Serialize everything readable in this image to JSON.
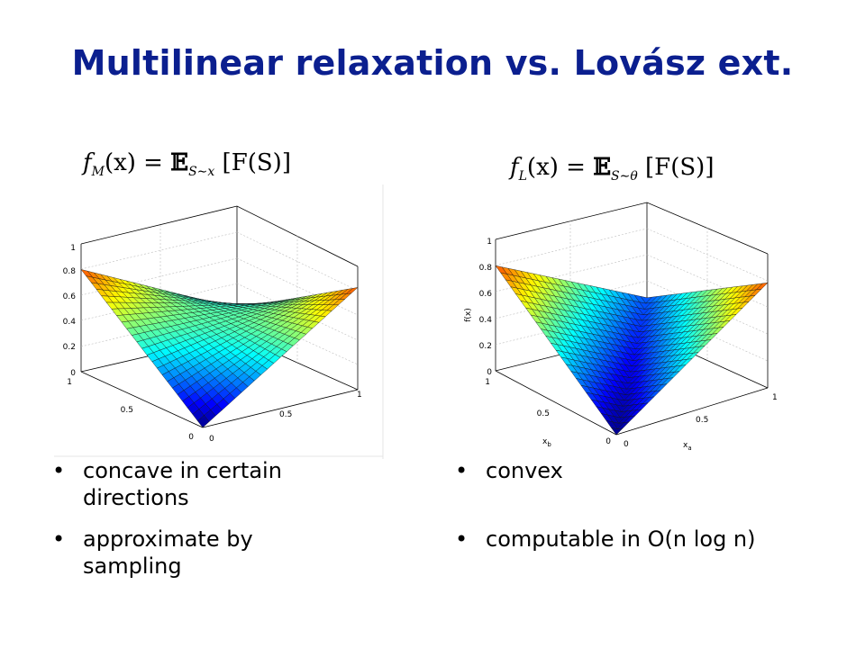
{
  "title": "Multilinear relaxation vs. Lovász ext.",
  "left": {
    "formula": {
      "f": "f",
      "sub": "M",
      "args": "(x) = ",
      "E": "𝔼",
      "esub": "S∼x",
      "rest": " [F(S)]"
    },
    "plot": {
      "z_ticks": [
        "0",
        "0.2",
        "0.4",
        "0.6",
        "0.8",
        "1"
      ],
      "xb_ticks": [
        "1",
        "0.5",
        "0"
      ],
      "xa_ticks": [
        "0",
        "0.5",
        "1"
      ]
    },
    "bullets": [
      "concave in certain directions",
      "approximate by sampling"
    ],
    "bullet_glyph": "•"
  },
  "right": {
    "formula": {
      "f": "f",
      "sub": "L",
      "args": "(x) = ",
      "E": "𝔼",
      "esub": "S∼θ",
      "rest": " [F(S)]"
    },
    "plot": {
      "z_ticks": [
        "0",
        "0.2",
        "0.4",
        "0.6",
        "0.8",
        "1"
      ],
      "xb_ticks": [
        "1",
        "0.5",
        "0"
      ],
      "xa_ticks": [
        "0",
        "0.5",
        "1"
      ],
      "zlabel": "f(x)",
      "xb_label": "x",
      "xb_sub": "b",
      "xa_label": "x",
      "xa_sub": "a"
    },
    "bullets": [
      "convex",
      "computable in O(n log n)"
    ],
    "bullet_glyph": "•"
  }
}
